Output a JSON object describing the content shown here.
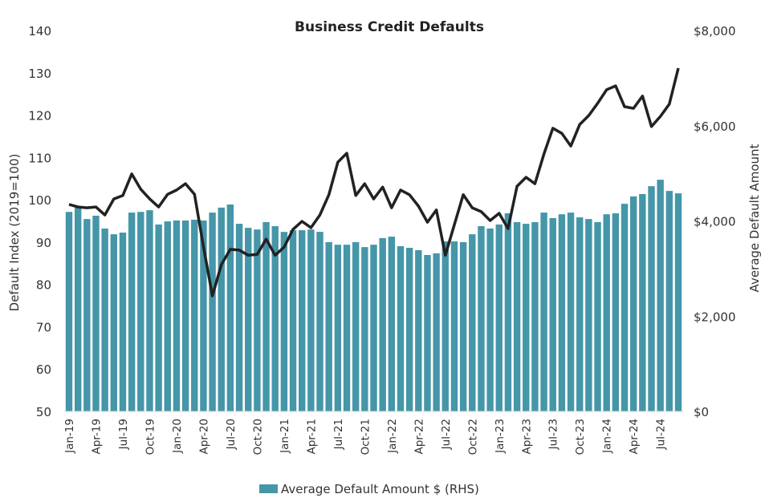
{
  "chart_data": {
    "type": "bar+line",
    "title": "Business Credit Defaults",
    "ylabel_left": "Default Index (2019=100)",
    "ylabel_right": "Average Default Amount",
    "ylim_left": [
      50,
      140
    ],
    "ylim_right": [
      0,
      8000
    ],
    "left_ticks": [
      "50",
      "60",
      "70",
      "80",
      "90",
      "100",
      "110",
      "120",
      "130",
      "140"
    ],
    "right_ticks": [
      "$0",
      "$2,000",
      "$4,000",
      "$6,000",
      "$8,000"
    ],
    "grid": false,
    "legend_position": "bottom",
    "x": [
      "Jan-19",
      "Feb-19",
      "Mar-19",
      "Apr-19",
      "May-19",
      "Jun-19",
      "Jul-19",
      "Aug-19",
      "Sep-19",
      "Oct-19",
      "Nov-19",
      "Dec-19",
      "Jan-20",
      "Feb-20",
      "Mar-20",
      "Apr-20",
      "May-20",
      "Jun-20",
      "Jul-20",
      "Aug-20",
      "Sep-20",
      "Oct-20",
      "Nov-20",
      "Dec-20",
      "Jan-21",
      "Feb-21",
      "Mar-21",
      "Apr-21",
      "May-21",
      "Jun-21",
      "Jul-21",
      "Aug-21",
      "Sep-21",
      "Oct-21",
      "Nov-21",
      "Dec-21",
      "Jan-22",
      "Feb-22",
      "Mar-22",
      "Apr-22",
      "May-22",
      "Jun-22",
      "Jul-22",
      "Aug-22",
      "Sep-22",
      "Oct-22",
      "Nov-22",
      "Dec-22",
      "Jan-23",
      "Feb-23",
      "Mar-23",
      "Apr-23",
      "May-23",
      "Jun-23",
      "Jul-23",
      "Aug-23",
      "Sep-23",
      "Oct-23",
      "Nov-23",
      "Dec-23",
      "Jan-24",
      "Feb-24",
      "Mar-24",
      "Apr-24",
      "May-24",
      "Jun-24",
      "Jul-24",
      "Aug-24",
      "Sep-24"
    ],
    "tick_labels": [
      "Jan-19",
      "Apr-19",
      "Jul-19",
      "Oct-19",
      "Jan-20",
      "Apr-20",
      "Jul-20",
      "Oct-20",
      "Jan-21",
      "Apr-21",
      "Jul-21",
      "Oct-21",
      "Jan-22",
      "Apr-22",
      "Jul-22",
      "Oct-22",
      "Jan-23",
      "Apr-23",
      "Jul-23",
      "Oct-23",
      "Jan-24",
      "Apr-24",
      "Jul-24"
    ],
    "series": [
      {
        "name": "Average Default Amount $ (RHS)",
        "type": "bar",
        "axis": "right",
        "color": "#4596A8",
        "values": [
          4190,
          4280,
          4040,
          4110,
          3840,
          3720,
          3755,
          4175,
          4190,
          4225,
          3925,
          3990,
          4010,
          4010,
          4025,
          4010,
          4175,
          4280,
          4345,
          3940,
          3855,
          3820,
          3975,
          3890,
          3770,
          3805,
          3805,
          3820,
          3770,
          3555,
          3500,
          3500,
          3555,
          3450,
          3500,
          3640,
          3670,
          3470,
          3435,
          3385,
          3285,
          3320,
          3570,
          3570,
          3555,
          3720,
          3890,
          3840,
          3925,
          4160,
          3975,
          3940,
          3975,
          4175,
          4060,
          4140,
          4175,
          4075,
          4040,
          3975,
          4140,
          4160,
          4360,
          4515,
          4565,
          4730,
          4865,
          4630,
          4580
        ]
      },
      {
        "name": "Default Index",
        "type": "line",
        "axis": "left",
        "color": "#222222",
        "values": [
          98.9,
          98.3,
          98.1,
          98.3,
          96.4,
          100.2,
          101.0,
          106.1,
          102.5,
          100.2,
          98.3,
          101.3,
          102.3,
          103.8,
          101.3,
          89.0,
          77.3,
          84.7,
          88.3,
          88.1,
          86.9,
          87.1,
          90.7,
          86.9,
          88.8,
          93.0,
          94.9,
          93.4,
          96.4,
          101.2,
          108.9,
          111.0,
          101.0,
          103.8,
          100.2,
          103.0,
          98.1,
          102.3,
          101.2,
          98.5,
          94.7,
          97.6,
          86.9,
          94.1,
          101.2,
          98.1,
          97.2,
          95.1,
          96.8,
          93.2,
          103.2,
          105.3,
          103.8,
          110.8,
          116.9,
          115.7,
          112.7,
          117.8,
          119.9,
          122.8,
          126.0,
          126.9,
          122.0,
          121.6,
          124.5,
          117.3,
          119.7,
          122.6,
          131.1
        ]
      }
    ]
  }
}
